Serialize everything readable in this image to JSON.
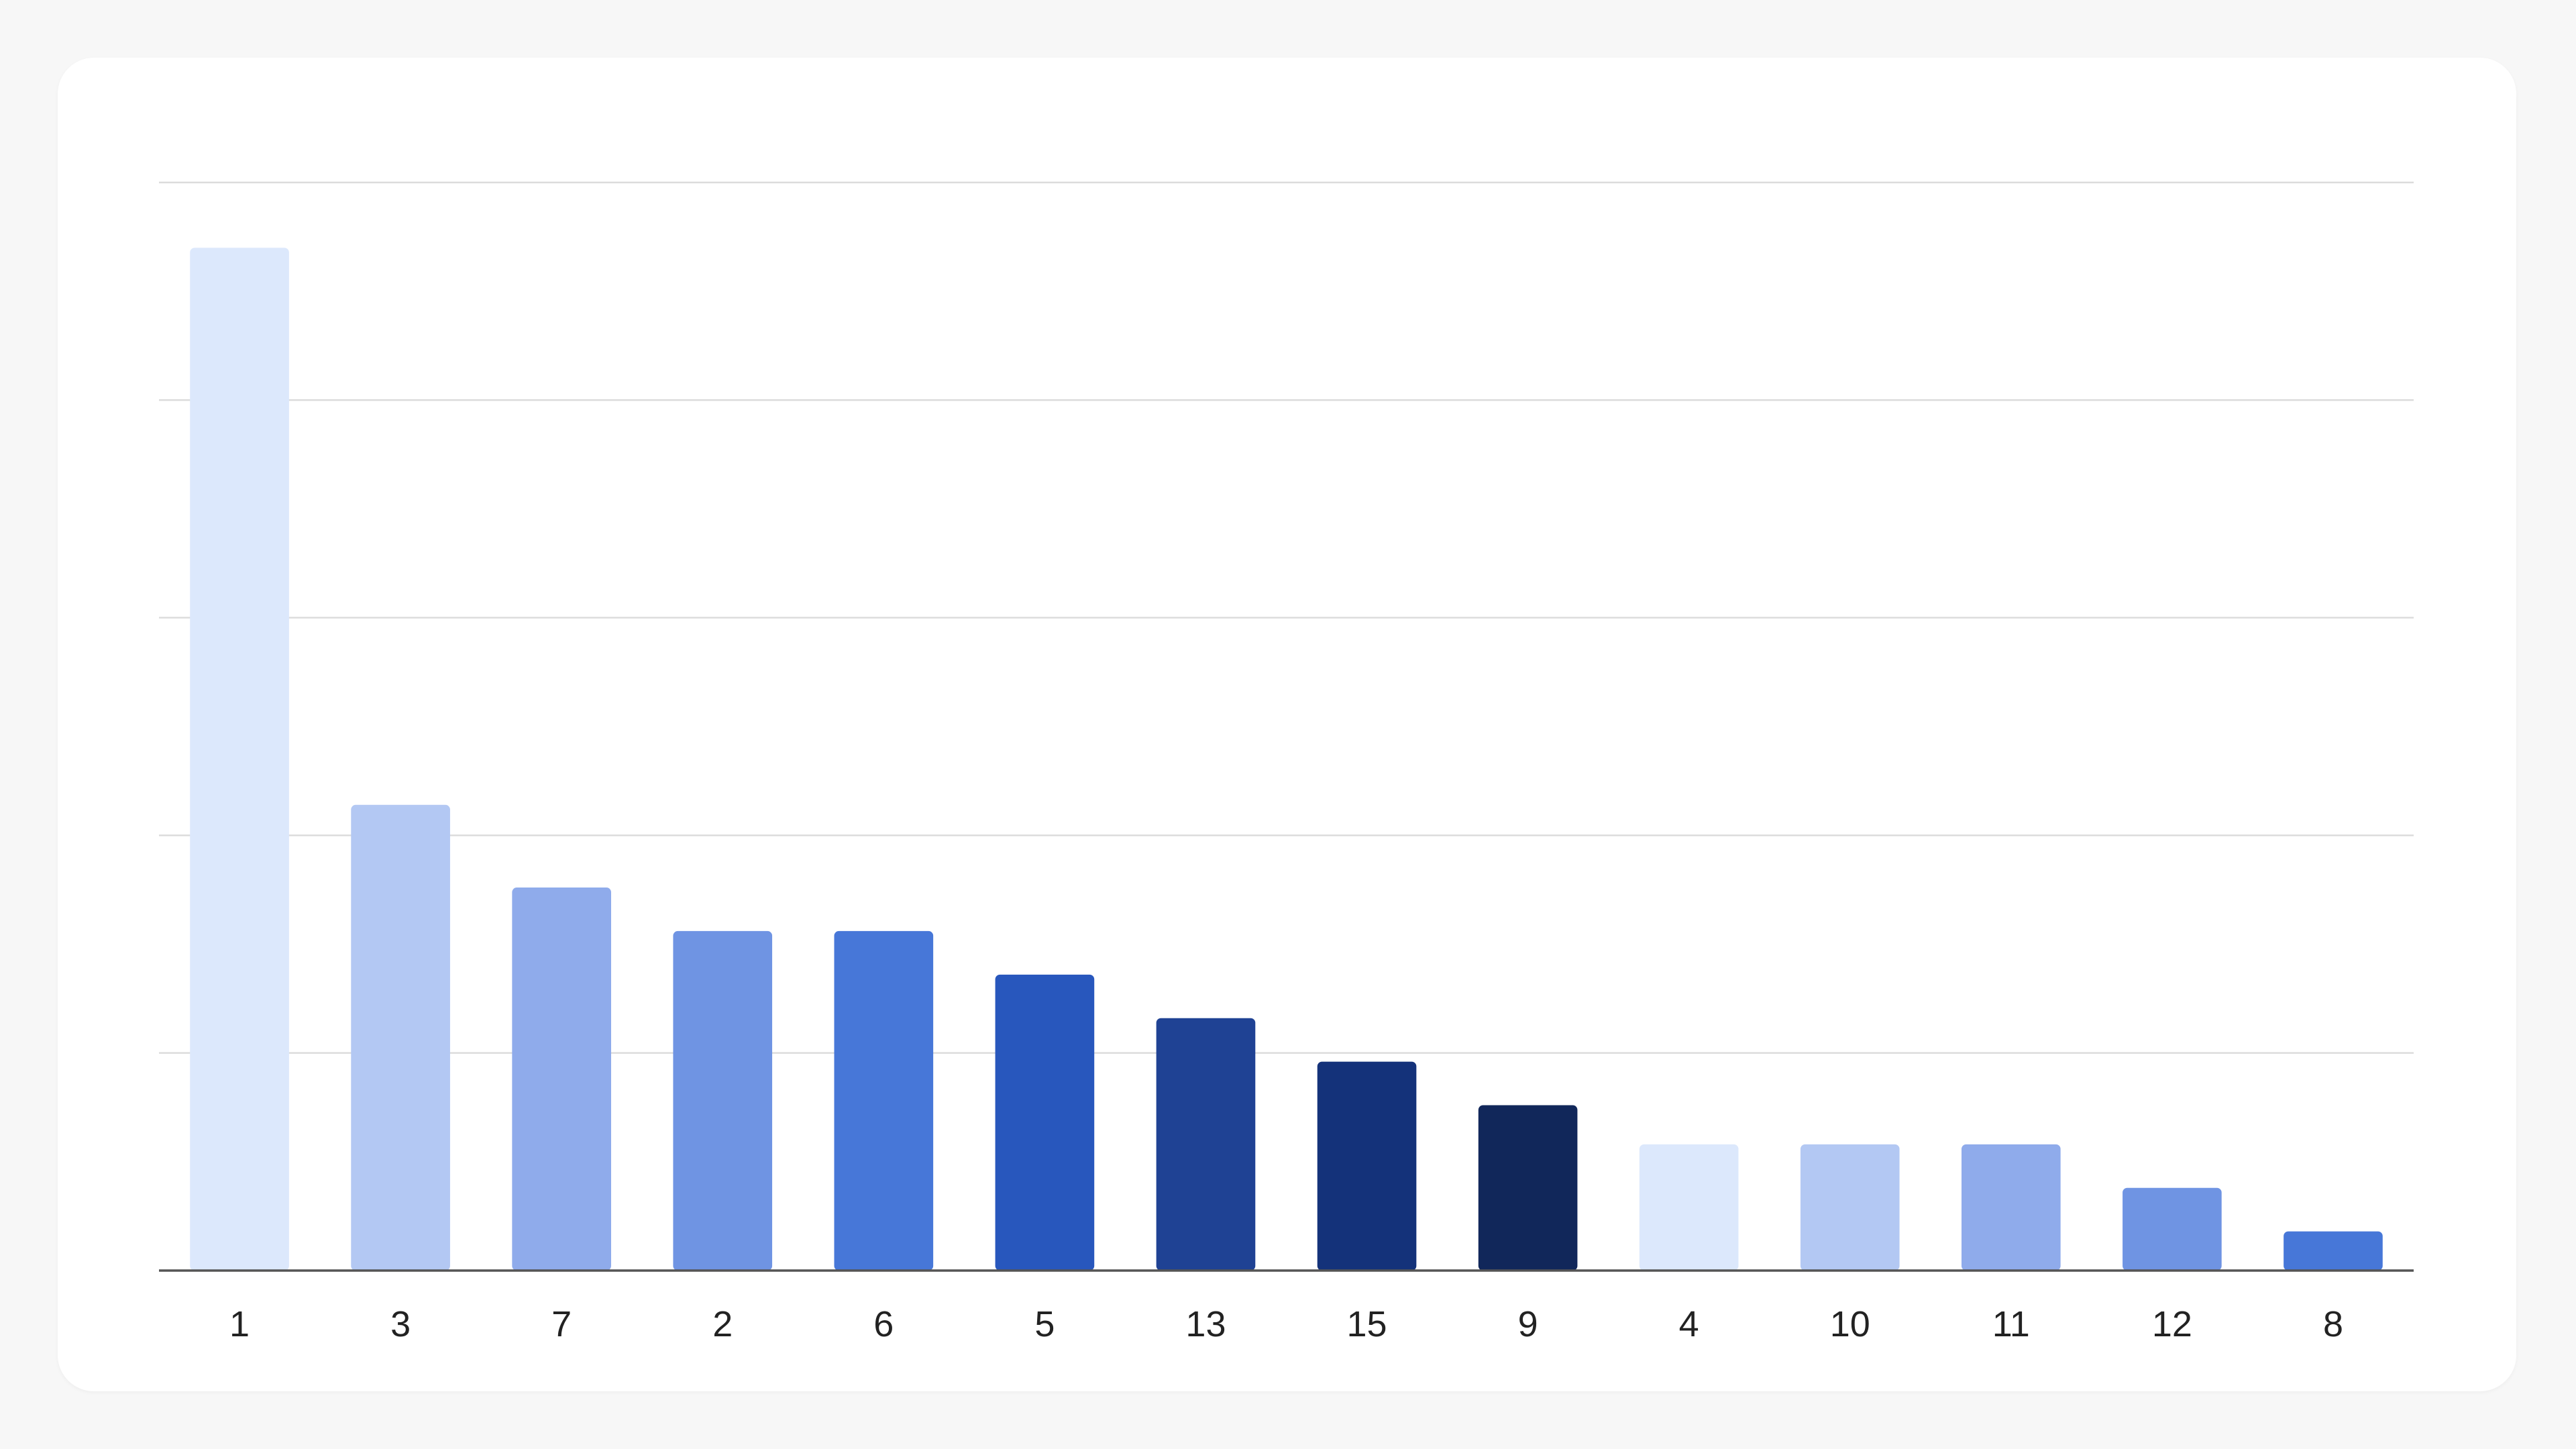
{
  "chart_data": {
    "type": "bar",
    "title": "",
    "xlabel": "",
    "ylabel": "",
    "categories": [
      "1",
      "3",
      "7",
      "2",
      "6",
      "5",
      "13",
      "15",
      "9",
      "4",
      "10",
      "11",
      "12",
      "8"
    ],
    "values": [
      23.5,
      10.7,
      8.8,
      7.8,
      7.8,
      6.8,
      5.8,
      4.8,
      3.8,
      2.9,
      2.9,
      2.9,
      1.9,
      0.9
    ],
    "ylim": [
      0,
      25
    ],
    "y_gridlines": [
      0,
      5,
      10,
      15,
      20,
      25
    ],
    "grid": true,
    "y_tick_labels_visible": false,
    "bar_colors": [
      "#dce8fc",
      "#b3c8f3",
      "#8fabeb",
      "#6f94e3",
      "#4777d8",
      "#2857bd",
      "#1f4294",
      "#14327a",
      "#11275a",
      "#dce8fc",
      "#b3c8f3",
      "#8fabeb",
      "#6f94e3",
      "#4777d8"
    ],
    "colors": {
      "background": "#f7f7f7",
      "card": "#ffffff",
      "grid": "#dcdcdc",
      "axis": "#555555",
      "label": "#222222"
    }
  }
}
